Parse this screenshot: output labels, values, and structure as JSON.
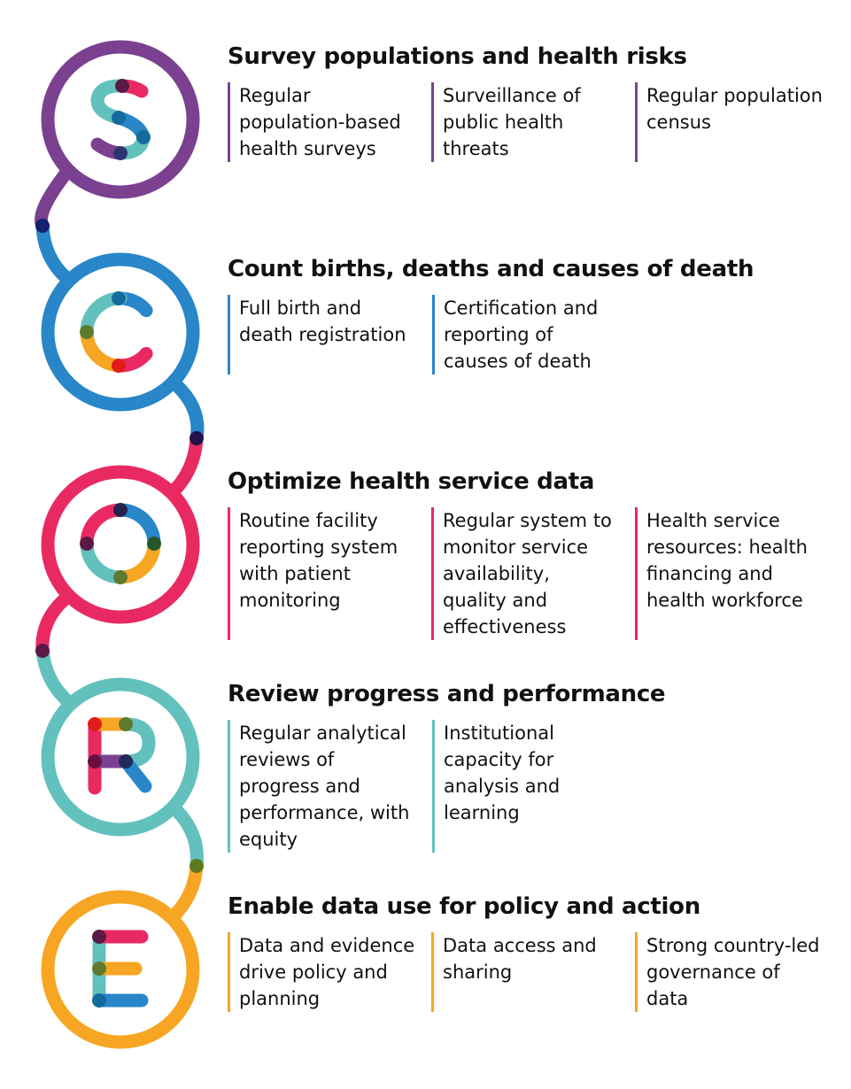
{
  "colors": {
    "purple": "#7B4190",
    "blue": "#2986C8",
    "pink": "#E92A62",
    "teal": "#63C1BD",
    "orange": "#F6A623"
  },
  "sections": [
    {
      "letter": "S",
      "color": "#7B4190",
      "heading": "Survey populations and health risks",
      "items": [
        "Regular population-based health surveys",
        "Surveillance of public health threats",
        "Regular population census"
      ]
    },
    {
      "letter": "C",
      "color": "#2986C8",
      "heading": "Count births, deaths and causes of death",
      "items": [
        "Full birth and death registration",
        "Certification and reporting of causes of death"
      ]
    },
    {
      "letter": "O",
      "color": "#E92A62",
      "heading": "Optimize health service data",
      "items": [
        "Routine facility reporting system with patient monitoring",
        "Regular system to monitor service availability, quality and effectiveness",
        "Health service resources: health financing and health workforce"
      ]
    },
    {
      "letter": "R",
      "color": "#63C1BD",
      "heading": "Review progress and performance",
      "items": [
        "Regular analytical reviews of progress and performance, with equity",
        "Institutional capacity for analysis and learning"
      ]
    },
    {
      "letter": "E",
      "color": "#F6A623",
      "heading": "Enable data use for policy and action",
      "items": [
        "Data and evidence drive policy and planning",
        "Data access and sharing",
        "Strong country-led governance of data"
      ]
    }
  ]
}
